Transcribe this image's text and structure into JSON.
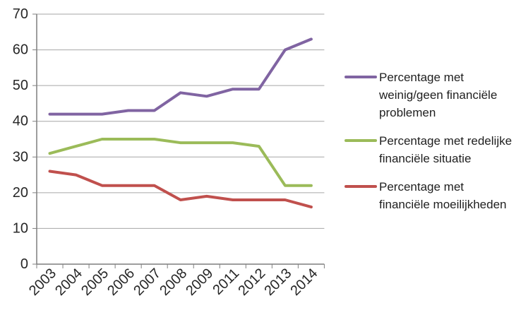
{
  "chart_data": {
    "type": "line",
    "title": "",
    "xlabel": "",
    "ylabel": "",
    "categories": [
      "2003",
      "2004",
      "2005",
      "2006",
      "2007",
      "2008",
      "2009",
      "2011",
      "2012",
      "2013",
      "2014"
    ],
    "series": [
      {
        "name": "Percentage met weinig/geen financiële problemen",
        "color": "#8064A2",
        "values": [
          42,
          42,
          42,
          43,
          43,
          48,
          47,
          49,
          49,
          60,
          63
        ]
      },
      {
        "name": "Percentage met redelijke financiële situatie",
        "color": "#9BBB59",
        "values": [
          31,
          33,
          35,
          35,
          35,
          34,
          34,
          34,
          33,
          22,
          22
        ]
      },
      {
        "name": "Percentage met financiële moeilijkheden",
        "color": "#C0504D",
        "values": [
          26,
          25,
          22,
          22,
          22,
          18,
          19,
          18,
          18,
          18,
          16
        ]
      }
    ],
    "ylim": [
      0,
      70
    ],
    "yticks": [
      0,
      10,
      20,
      30,
      40,
      50,
      60,
      70
    ],
    "grid": true,
    "legend_position": "right"
  },
  "style": {
    "gridline_color": "#A6A6A6",
    "axis_color": "#7F7F7F",
    "tick_label_color": "#262626",
    "background": "#FFFFFF"
  }
}
